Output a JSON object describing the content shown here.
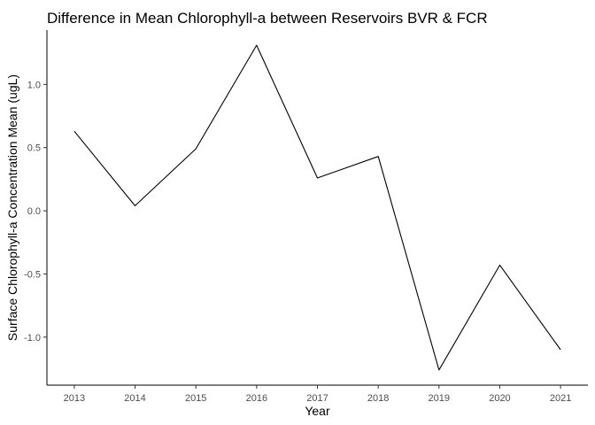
{
  "chart_data": {
    "type": "line",
    "title": "Difference in Mean Chlorophyll-a between Reservoirs BVR & FCR",
    "xlabel": "Year",
    "ylabel": "Surface Chlorophyll-a Concentration Mean (ugL)",
    "x": [
      2013,
      2014,
      2015,
      2016,
      2017,
      2018,
      2019,
      2020,
      2021
    ],
    "x_tick_labels": [
      "2013",
      "2014",
      "2015",
      "2016",
      "2017",
      "2018",
      "2019",
      "2020",
      "2021"
    ],
    "y_ticks": [
      1.0,
      0.5,
      0.0,
      -0.5,
      -1.0
    ],
    "y_tick_labels": [
      "1.0",
      "0.5",
      "0.0",
      "-0.5",
      "-1.0"
    ],
    "series": [
      {
        "values": [
          0.63,
          0.04,
          0.49,
          1.31,
          0.26,
          0.43,
          -1.26,
          -0.43,
          -1.1
        ],
        "color": "#000000"
      }
    ],
    "xlim": [
      2012.55,
      2021.45
    ],
    "ylim": [
      -1.38,
      1.43
    ],
    "grid": false,
    "legend": "none"
  }
}
